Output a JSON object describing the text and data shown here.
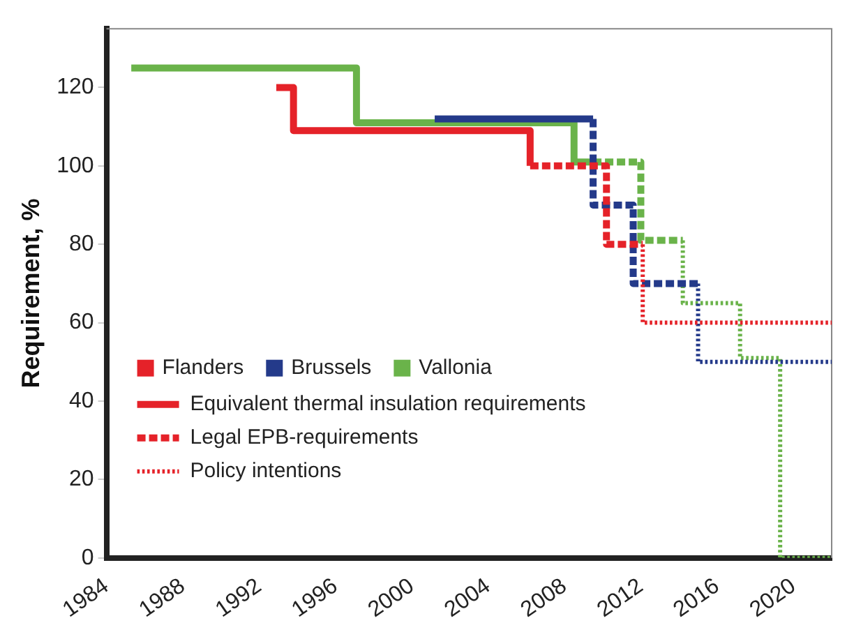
{
  "chart_data": {
    "type": "step",
    "ylabel": "Requirement, %",
    "xlim": [
      1984,
      2022
    ],
    "xticks": [
      1984,
      1988,
      1992,
      1996,
      2000,
      2004,
      2008,
      2012,
      2016,
      2020
    ],
    "ylim": [
      0,
      135
    ],
    "yticks": [
      0,
      20,
      40,
      60,
      80,
      100,
      120
    ],
    "grid": false,
    "legend": "bottom left",
    "annotations": [
      "Equivalent thermal insulation requirements",
      "Legal EPB-requirements",
      "Policy intentions"
    ],
    "series": [
      {
        "name": "Flanders",
        "color": "#e52229",
        "line_style": "solid",
        "x": [
          1992.9,
          1993.8,
          2006.2,
          2006.2
        ],
        "values": [
          120,
          120,
          109,
          100
        ]
      },
      {
        "color": "#e52229",
        "line_style": "dashed",
        "x": [
          2006.2,
          2010.2,
          2012.1
        ],
        "values": [
          100,
          100,
          80
        ]
      },
      {
        "color": "#e52229",
        "line_style": "dotted",
        "x": [
          2012.1,
          2022
        ],
        "values": [
          80,
          60
        ]
      },
      {
        "name": "Brussels",
        "color": "#243a8a",
        "line_style": "solid",
        "x": [
          2001.2,
          2009.5
        ],
        "values": [
          112,
          112
        ]
      },
      {
        "color": "#243a8a",
        "line_style": "dashed",
        "x": [
          2009.5,
          2011.6,
          2015
        ],
        "values": [
          112,
          90,
          70
        ]
      },
      {
        "color": "#243a8a",
        "line_style": "dotted",
        "x": [
          2015,
          2022
        ],
        "values": [
          70,
          50
        ]
      },
      {
        "name": "Vallonia",
        "color": "#6ab34a",
        "line_style": "solid",
        "x": [
          1985.3,
          1997.1,
          2008.5,
          2009.5
        ],
        "values": [
          125,
          125,
          111,
          101
        ]
      },
      {
        "color": "#6ab34a",
        "line_style": "dashed",
        "x": [
          2009.5,
          2012,
          2014.2
        ],
        "values": [
          101,
          101,
          81
        ]
      },
      {
        "color": "#6ab34a",
        "line_style": "dotted",
        "x": [
          2014.2,
          2017.2,
          2019.3,
          2022
        ],
        "values": [
          81,
          65,
          51,
          0
        ]
      }
    ]
  }
}
